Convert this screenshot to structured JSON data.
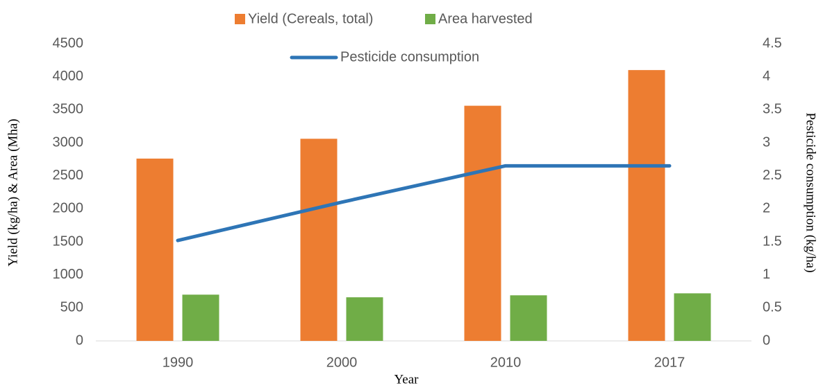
{
  "chart_data": {
    "type": "bar",
    "categories": [
      "1990",
      "2000",
      "2010",
      "2017"
    ],
    "series": [
      {
        "name": "Yield (Cereals, total)",
        "color": "#ed7d31",
        "type": "bar",
        "values": [
          2760,
          3060,
          3560,
          4100
        ]
      },
      {
        "name": "Area harvested",
        "color": "#70ad47",
        "type": "bar",
        "values": [
          700,
          660,
          690,
          720
        ]
      },
      {
        "name": "Pesticide consumption",
        "color": "#2e75b6",
        "type": "line",
        "axis": "y2",
        "values": [
          1.52,
          2.1,
          2.65,
          2.65
        ]
      }
    ],
    "x_label": "Year",
    "y_label": "Yield (kg/ha) & Area (Mha)",
    "y2_label": "Pesticide consumption (kg/ha)",
    "ylim": [
      0,
      4500
    ],
    "yticks": [
      0,
      500,
      1000,
      1500,
      2000,
      2500,
      3000,
      3500,
      4000,
      4500
    ],
    "y2lim": [
      0,
      4.5
    ],
    "y2ticks": [
      0,
      0.5,
      1,
      1.5,
      2,
      2.5,
      3,
      3.5,
      4,
      4.5
    ],
    "grid": false
  }
}
